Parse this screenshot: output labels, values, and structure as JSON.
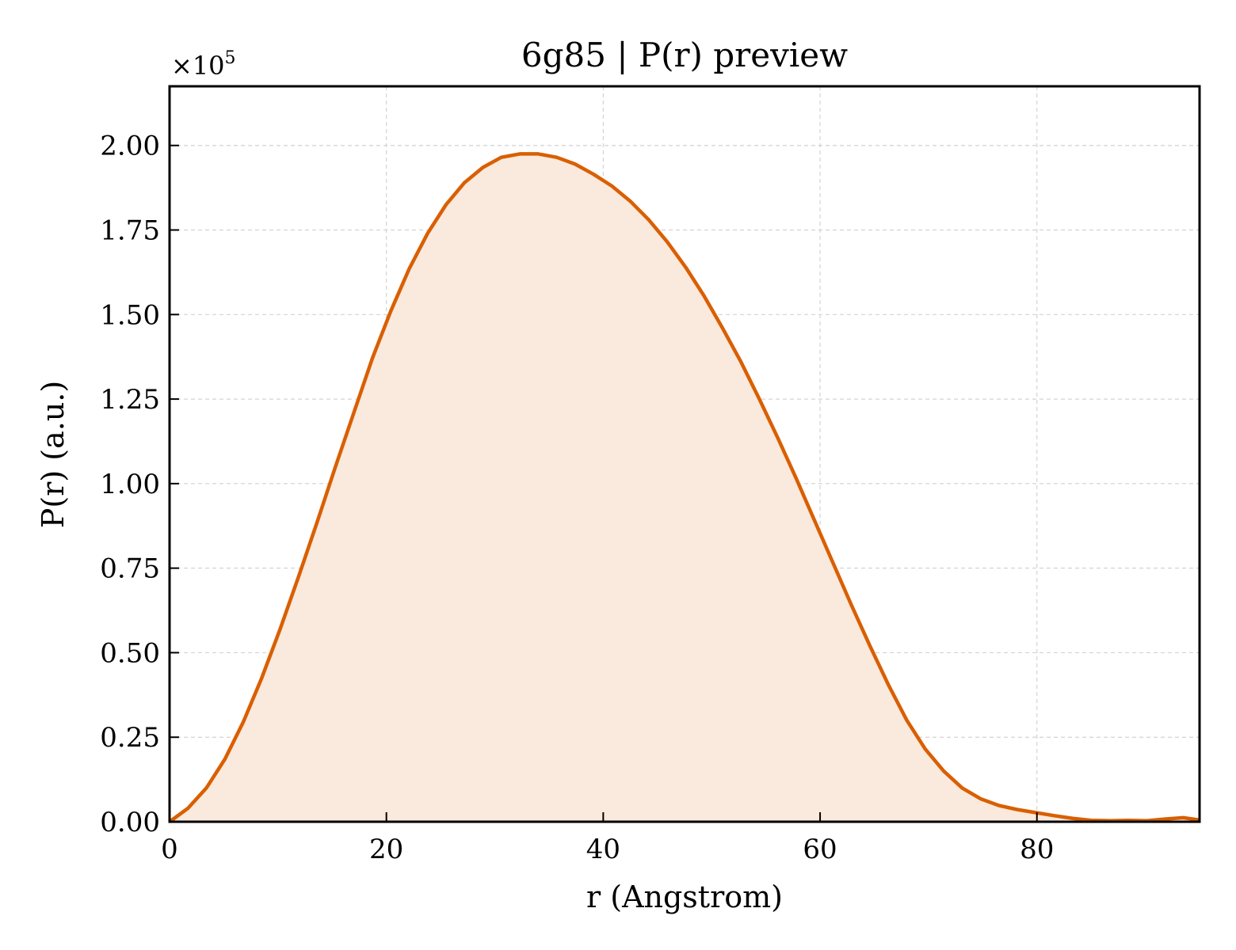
{
  "chart_data": {
    "type": "area",
    "title": "6g85 | P(r) preview",
    "xlabel": "r (Angstrom)",
    "ylabel": "P(r) (a.u.)",
    "y_multiplier": {
      "base": "×10",
      "exponent": "5"
    },
    "xlim": [
      0,
      95
    ],
    "ylim": [
      0,
      2.175
    ],
    "x_ticks": [
      0,
      20,
      40,
      60,
      80
    ],
    "x_tick_labels": [
      "0",
      "20",
      "40",
      "60",
      "80"
    ],
    "y_ticks": [
      0,
      0.25,
      0.5,
      0.75,
      1.0,
      1.25,
      1.5,
      1.75,
      2.0
    ],
    "y_tick_labels": [
      "0.00",
      "0.25",
      "0.50",
      "0.75",
      "1.00",
      "1.25",
      "1.50",
      "1.75",
      "2.00"
    ],
    "grid": true,
    "tick_direction": "in",
    "line_color": "#d95f02",
    "fill_color": "#fae9dd",
    "series": [
      {
        "x": [
          0,
          1.7,
          3.4,
          5.1,
          6.8,
          8.5,
          10.2,
          11.9,
          13.6,
          15.3,
          17.0,
          18.7,
          20.4,
          22.1,
          23.8,
          25.5,
          27.2,
          28.9,
          30.6,
          32.3,
          34.0,
          35.7,
          37.4,
          39.1,
          40.8,
          42.5,
          44.2,
          45.9,
          47.6,
          49.3,
          51.0,
          52.7,
          54.4,
          56.1,
          57.8,
          59.5,
          61.2,
          62.9,
          64.6,
          66.3,
          68.0,
          69.7,
          71.4,
          73.1,
          74.8,
          76.5,
          78.2,
          79.9,
          81.6,
          83.3,
          85.0,
          86.7,
          88.4,
          90.1,
          91.8,
          93.5,
          95.0
        ],
        "y": [
          0.0,
          0.04,
          0.1,
          0.185,
          0.295,
          0.425,
          0.57,
          0.725,
          0.885,
          1.05,
          1.21,
          1.37,
          1.51,
          1.635,
          1.74,
          1.825,
          1.89,
          1.935,
          1.965,
          1.975,
          1.975,
          1.965,
          1.945,
          1.915,
          1.88,
          1.835,
          1.78,
          1.715,
          1.64,
          1.555,
          1.46,
          1.36,
          1.25,
          1.135,
          1.015,
          0.89,
          0.765,
          0.64,
          0.52,
          0.405,
          0.3,
          0.215,
          0.15,
          0.1,
          0.068,
          0.048,
          0.036,
          0.027,
          0.018,
          0.01,
          0.004,
          0.003,
          0.004,
          0.003,
          0.008,
          0.012,
          0.005
        ]
      }
    ]
  }
}
